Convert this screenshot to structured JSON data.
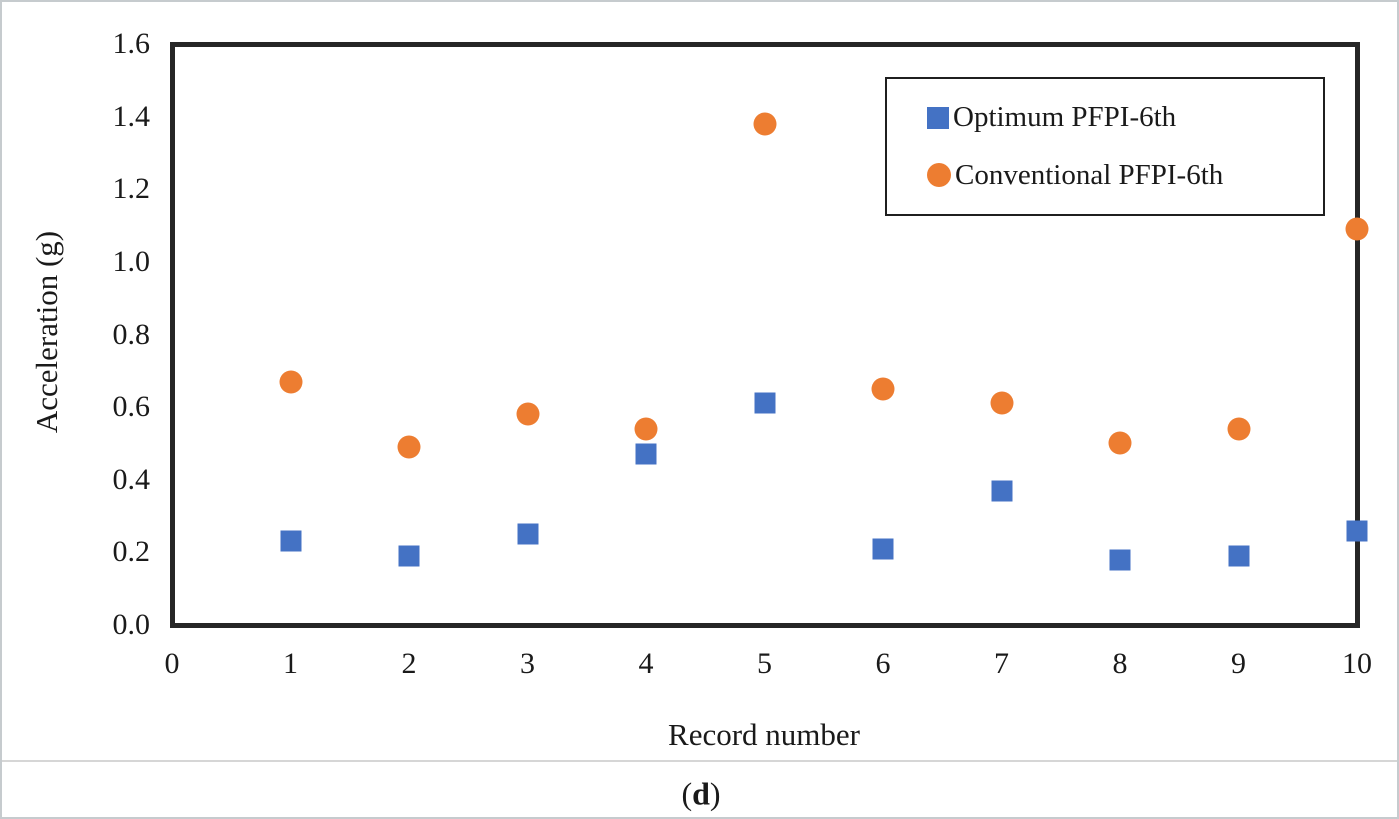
{
  "chart_data": {
    "type": "scatter",
    "x": [
      1,
      2,
      3,
      4,
      5,
      6,
      7,
      8,
      9,
      10
    ],
    "series": [
      {
        "name": "Optimum PFPI-6th",
        "marker": "square",
        "color": "#4472C4",
        "values": [
          0.23,
          0.19,
          0.25,
          0.47,
          0.61,
          0.21,
          0.37,
          0.18,
          0.19,
          0.26
        ]
      },
      {
        "name": "Conventional PFPI-6th",
        "marker": "circle",
        "color": "#ED7D31",
        "values": [
          0.67,
          0.49,
          0.58,
          0.54,
          1.38,
          0.65,
          0.61,
          0.5,
          0.54,
          1.09
        ]
      }
    ],
    "xlabel": "Record number",
    "ylabel": "Acceleration (g)",
    "xlim": [
      0,
      10
    ],
    "ylim": [
      0,
      1.6
    ],
    "xticks": [
      "0",
      "1",
      "2",
      "3",
      "4",
      "5",
      "6",
      "7",
      "8",
      "9",
      "10"
    ],
    "yticks": [
      "0.0",
      "0.2",
      "0.4",
      "0.6",
      "0.8",
      "1.0",
      "1.2",
      "1.4",
      "1.6"
    ],
    "grid": false,
    "legend_position": "top-right",
    "axis_color": "#262626",
    "text_color": "#1a1a1a"
  },
  "caption": {
    "prefix": "(",
    "letter": "d",
    "suffix": ")"
  }
}
